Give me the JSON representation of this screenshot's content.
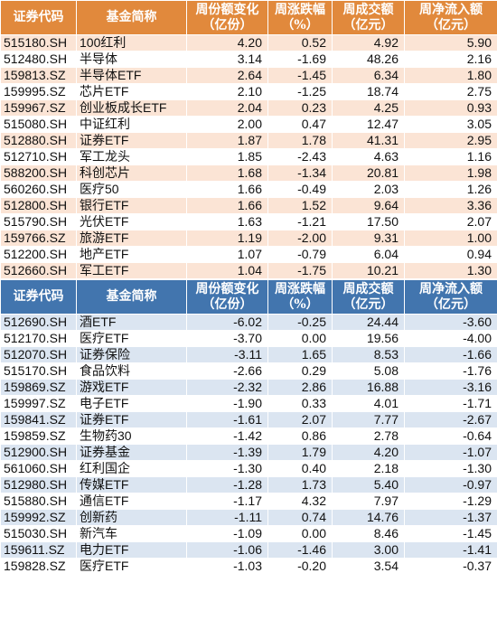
{
  "headers": [
    "证券代码",
    "基金简称",
    "周份额变化\n（亿份）",
    "周涨跌幅\n（%）",
    "周成交额\n（亿元）",
    "周净流入额\n（亿元）"
  ],
  "table_inflow": [
    [
      "515180.SH",
      "100红利",
      "4.20",
      "0.52",
      "4.92",
      "5.90"
    ],
    [
      "512480.SH",
      "半导体",
      "3.14",
      "-1.69",
      "48.26",
      "2.16"
    ],
    [
      "159813.SZ",
      "半导体ETF",
      "2.64",
      "-1.45",
      "6.34",
      "1.80"
    ],
    [
      "159995.SZ",
      "芯片ETF",
      "2.10",
      "-1.25",
      "18.74",
      "2.75"
    ],
    [
      "159967.SZ",
      "创业板成长ETF",
      "2.04",
      "0.23",
      "4.25",
      "0.93"
    ],
    [
      "515080.SH",
      "中证红利",
      "2.00",
      "0.47",
      "12.47",
      "3.05"
    ],
    [
      "512880.SH",
      "证券ETF",
      "1.87",
      "1.78",
      "41.31",
      "2.95"
    ],
    [
      "512710.SH",
      "军工龙头",
      "1.85",
      "-2.43",
      "4.63",
      "1.16"
    ],
    [
      "588200.SH",
      "科创芯片",
      "1.68",
      "-1.34",
      "20.81",
      "1.98"
    ],
    [
      "560260.SH",
      "医疗50",
      "1.66",
      "-0.49",
      "2.03",
      "1.26"
    ],
    [
      "512800.SH",
      "银行ETF",
      "1.66",
      "1.52",
      "9.64",
      "3.36"
    ],
    [
      "515790.SH",
      "光伏ETF",
      "1.63",
      "-1.21",
      "17.50",
      "2.07"
    ],
    [
      "159766.SZ",
      "旅游ETF",
      "1.19",
      "-2.00",
      "9.31",
      "1.00"
    ],
    [
      "512200.SH",
      "地产ETF",
      "1.07",
      "-0.79",
      "6.04",
      "0.94"
    ],
    [
      "512660.SH",
      "军工ETF",
      "1.04",
      "-1.75",
      "10.21",
      "1.30"
    ]
  ],
  "table_outflow": [
    [
      "512690.SH",
      "酒ETF",
      "-6.02",
      "-0.25",
      "24.44",
      "-3.60"
    ],
    [
      "512170.SH",
      "医疗ETF",
      "-3.70",
      "0.00",
      "19.56",
      "-4.00"
    ],
    [
      "512070.SH",
      "证券保险",
      "-3.11",
      "1.65",
      "8.53",
      "-1.66"
    ],
    [
      "515170.SH",
      "食品饮料",
      "-2.66",
      "0.29",
      "5.08",
      "-1.76"
    ],
    [
      "159869.SZ",
      "游戏ETF",
      "-2.32",
      "2.86",
      "16.88",
      "-3.16"
    ],
    [
      "159997.SZ",
      "电子ETF",
      "-1.90",
      "0.33",
      "4.01",
      "-1.71"
    ],
    [
      "159841.SZ",
      "证券ETF",
      "-1.61",
      "2.07",
      "7.77",
      "-2.67"
    ],
    [
      "159859.SZ",
      "生物药30",
      "-1.42",
      "0.86",
      "2.78",
      "-0.64"
    ],
    [
      "512900.SH",
      "证券基金",
      "-1.39",
      "1.79",
      "4.20",
      "-1.07"
    ],
    [
      "561060.SH",
      "红利国企",
      "-1.30",
      "0.40",
      "2.18",
      "-1.30"
    ],
    [
      "512980.SH",
      "传媒ETF",
      "-1.28",
      "1.73",
      "5.40",
      "-0.97"
    ],
    [
      "515880.SH",
      "通信ETF",
      "-1.17",
      "4.32",
      "7.97",
      "-1.29"
    ],
    [
      "159992.SZ",
      "创新药",
      "-1.11",
      "0.74",
      "14.76",
      "-1.37"
    ],
    [
      "515030.SH",
      "新汽车",
      "-1.09",
      "0.00",
      "8.46",
      "-1.45"
    ],
    [
      "159611.SZ",
      "电力ETF",
      "-1.06",
      "-1.46",
      "3.00",
      "-1.41"
    ],
    [
      "159828.SZ",
      "医疗ETF",
      "-1.03",
      "-0.20",
      "3.54",
      "-0.37"
    ]
  ],
  "colors": {
    "header_top": "#e1893c",
    "header_bottom": "#4275ae",
    "band_top": "#fbe4d5",
    "band_bottom": "#dbe5f1"
  }
}
